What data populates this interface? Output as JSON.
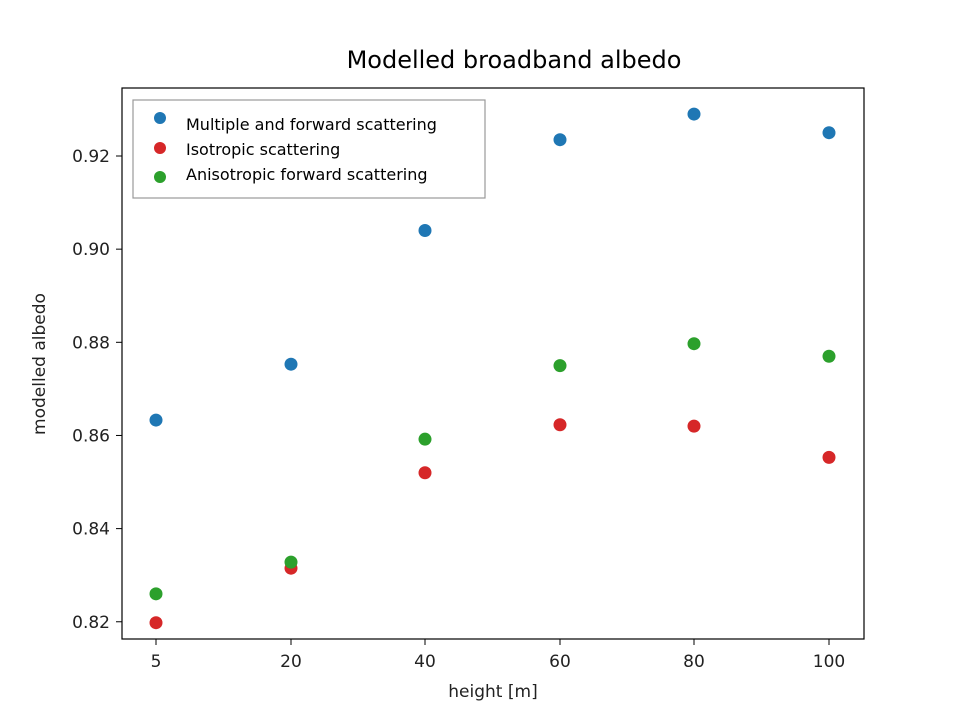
{
  "chart_data": {
    "type": "scatter",
    "title": "Modelled broadband albedo",
    "xlabel": "height [m]",
    "ylabel": "modelled albedo",
    "x": [
      5,
      20,
      40,
      60,
      80,
      100
    ],
    "x_tick_labels": [
      "5",
      "20",
      "40",
      "60",
      "80",
      "100"
    ],
    "y_ticks": [
      "0.82",
      "0.84",
      "0.86",
      "0.88",
      "0.90",
      "0.92"
    ],
    "ylim": [
      0.8163,
      0.9346
    ],
    "grid": false,
    "legend_position": "top-left",
    "series": [
      {
        "name": "Multiple and forward scattering",
        "color": "#1f77b4",
        "values": [
          0.8633,
          0.8753,
          0.904,
          0.9235,
          0.929,
          0.925
        ]
      },
      {
        "name": "Isotropic scattering",
        "color": "#d62728",
        "values": [
          0.8198,
          0.8315,
          0.852,
          0.8623,
          0.862,
          0.8553
        ]
      },
      {
        "name": "Anisotropic forward scattering",
        "color": "#2ca02c",
        "values": [
          0.826,
          0.8328,
          0.8592,
          0.875,
          0.8797,
          0.877
        ]
      }
    ]
  }
}
